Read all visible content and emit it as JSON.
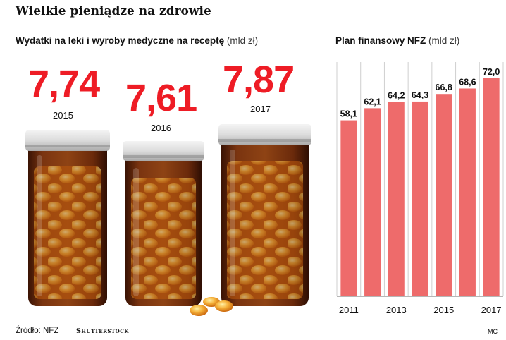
{
  "title": "Wielkie pieniądze na zdrowie",
  "left_panel": {
    "heading": "Wydatki na leki i wyroby medyczne na receptę",
    "unit": "(mld zł)",
    "items": [
      {
        "value": "7,74",
        "year": "2015"
      },
      {
        "value": "7,61",
        "year": "2016"
      },
      {
        "value": "7,87",
        "year": "2017"
      }
    ],
    "value_color": "#ee1c25"
  },
  "right_panel": {
    "heading": "Plan finansowy NFZ",
    "unit": "(mld zł)"
  },
  "chart_data": {
    "type": "bar",
    "categories": [
      "2011",
      "2012",
      "2013",
      "2014",
      "2015",
      "2016",
      "2017"
    ],
    "values": [
      58.1,
      62.1,
      64.2,
      64.3,
      66.8,
      68.6,
      72.0
    ],
    "value_labels": [
      "58,1",
      "62,1",
      "64,2",
      "64,3",
      "66,8",
      "68,6",
      "72,0"
    ],
    "tick_labels": [
      "2011",
      "",
      "2013",
      "",
      "2015",
      "",
      "2017"
    ],
    "bar_color": "#ee6b6b",
    "grid_color": "#cfcfcf",
    "grid": true,
    "ylim": [
      0,
      75
    ]
  },
  "footer": {
    "source": "Źródło: NFZ",
    "photo_credit": "Shutterstock",
    "author": "MC"
  }
}
